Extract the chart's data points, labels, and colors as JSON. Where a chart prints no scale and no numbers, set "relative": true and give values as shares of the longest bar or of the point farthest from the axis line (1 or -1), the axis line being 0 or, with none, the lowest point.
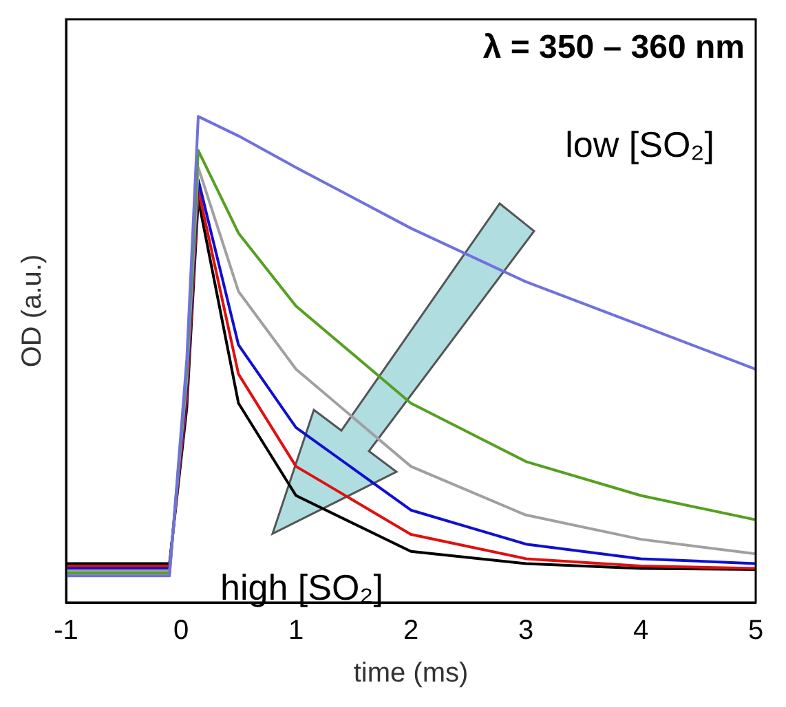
{
  "chart_data": {
    "type": "line",
    "relative": true,
    "xlabel": "time (ms)",
    "ylabel": "OD (a.u.)",
    "x": [
      -1,
      -0.1,
      0.05,
      0.15,
      0.5,
      1,
      2,
      3,
      4,
      5
    ],
    "xlim": [
      -1,
      5
    ],
    "xticks": [
      -1,
      0,
      1,
      2,
      3,
      4,
      5
    ],
    "series": [
      {
        "color": "#7070e0",
        "values": [
          0.055,
          0.055,
          0.5,
          1.0,
          0.96,
          0.895,
          0.77,
          0.66,
          0.57,
          0.48
        ]
      },
      {
        "color": "#55a020",
        "values": [
          0.06,
          0.06,
          0.48,
          0.93,
          0.76,
          0.61,
          0.41,
          0.29,
          0.22,
          0.17
        ]
      },
      {
        "color": "#a0a0a0",
        "values": [
          0.065,
          0.065,
          0.46,
          0.895,
          0.64,
          0.48,
          0.28,
          0.18,
          0.13,
          0.1
        ]
      },
      {
        "color": "#1010d0",
        "values": [
          0.07,
          0.07,
          0.44,
          0.87,
          0.53,
          0.36,
          0.19,
          0.12,
          0.09,
          0.08
        ]
      },
      {
        "color": "#e01010",
        "values": [
          0.075,
          0.075,
          0.42,
          0.85,
          0.47,
          0.28,
          0.14,
          0.09,
          0.075,
          0.07
        ]
      },
      {
        "color": "#000000",
        "values": [
          0.08,
          0.08,
          0.4,
          0.83,
          0.41,
          0.22,
          0.105,
          0.08,
          0.07,
          0.068
        ]
      }
    ],
    "annotations": [
      "λ = 350 – 360 nm",
      "low [SO₂]",
      "high [SO₂]"
    ],
    "grid": false,
    "legend": false
  }
}
